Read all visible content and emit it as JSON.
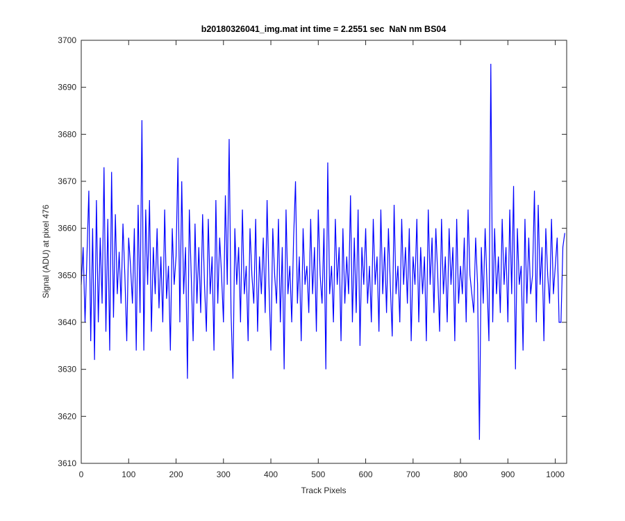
{
  "chart_data": {
    "type": "line",
    "title": "b20180326041_img.mat int time = 2.2551 sec  NaN nm BS04",
    "x_label": "Track Pixels",
    "y_label": "Signal (ADU) at pixel 476",
    "xlim": [
      0,
      1024
    ],
    "ylim": [
      3610,
      3700
    ],
    "xticks": [
      0,
      100,
      200,
      300,
      400,
      500,
      600,
      700,
      800,
      900,
      1000
    ],
    "yticks": [
      3610,
      3620,
      3630,
      3640,
      3650,
      3660,
      3670,
      3680,
      3690,
      3700
    ],
    "grid": false,
    "x": [
      0,
      4,
      8,
      12,
      16,
      20,
      24,
      28,
      32,
      36,
      40,
      44,
      48,
      52,
      56,
      60,
      64,
      68,
      72,
      76,
      80,
      84,
      88,
      92,
      96,
      100,
      104,
      108,
      112,
      116,
      120,
      124,
      128,
      132,
      136,
      140,
      144,
      148,
      152,
      156,
      160,
      164,
      168,
      172,
      176,
      180,
      184,
      188,
      192,
      196,
      200,
      204,
      208,
      212,
      216,
      220,
      224,
      228,
      232,
      236,
      240,
      244,
      248,
      252,
      256,
      260,
      264,
      268,
      272,
      276,
      280,
      284,
      288,
      292,
      296,
      300,
      304,
      308,
      312,
      316,
      320,
      324,
      328,
      332,
      336,
      340,
      344,
      348,
      352,
      356,
      360,
      364,
      368,
      372,
      376,
      380,
      384,
      388,
      392,
      396,
      400,
      404,
      408,
      412,
      416,
      420,
      424,
      428,
      432,
      436,
      440,
      444,
      448,
      452,
      456,
      460,
      464,
      468,
      472,
      476,
      480,
      484,
      488,
      492,
      496,
      500,
      504,
      508,
      512,
      516,
      520,
      524,
      528,
      532,
      536,
      540,
      544,
      548,
      552,
      556,
      560,
      564,
      568,
      572,
      576,
      580,
      584,
      588,
      592,
      596,
      600,
      604,
      608,
      612,
      616,
      620,
      624,
      628,
      632,
      636,
      640,
      644,
      648,
      652,
      656,
      660,
      664,
      668,
      672,
      676,
      680,
      684,
      688,
      692,
      696,
      700,
      704,
      708,
      712,
      716,
      720,
      724,
      728,
      732,
      736,
      740,
      744,
      748,
      752,
      756,
      760,
      764,
      768,
      772,
      776,
      780,
      784,
      788,
      792,
      796,
      800,
      804,
      808,
      812,
      816,
      820,
      824,
      828,
      832,
      836,
      840,
      844,
      848,
      852,
      856,
      860,
      864,
      868,
      872,
      876,
      880,
      884,
      888,
      892,
      896,
      900,
      904,
      908,
      912,
      916,
      920,
      924,
      928,
      932,
      936,
      940,
      944,
      948,
      952,
      956,
      960,
      964,
      968,
      972,
      976,
      980,
      984,
      988,
      992,
      996,
      1000,
      1004,
      1008,
      1012,
      1016,
      1020
    ],
    "series": [
      {
        "name": "signal",
        "color": "#0000ff",
        "values": [
          3648,
          3656,
          3640,
          3654,
          3668,
          3636,
          3660,
          3632,
          3666,
          3640,
          3658,
          3644,
          3673,
          3638,
          3662,
          3634,
          3672,
          3641,
          3663,
          3646,
          3655,
          3644,
          3661,
          3650,
          3636,
          3658,
          3652,
          3644,
          3660,
          3634,
          3665,
          3642,
          3683,
          3634,
          3664,
          3648,
          3666,
          3638,
          3656,
          3646,
          3660,
          3643,
          3654,
          3640,
          3664,
          3645,
          3652,
          3634,
          3660,
          3648,
          3654,
          3675,
          3640,
          3670,
          3646,
          3656,
          3628,
          3664,
          3650,
          3636,
          3661,
          3644,
          3656,
          3642,
          3663,
          3648,
          3638,
          3662,
          3646,
          3654,
          3634,
          3666,
          3644,
          3658,
          3650,
          3640,
          3667,
          3648,
          3679,
          3642,
          3628,
          3660,
          3648,
          3656,
          3640,
          3664,
          3646,
          3652,
          3636,
          3660,
          3650,
          3644,
          3662,
          3638,
          3654,
          3646,
          3658,
          3642,
          3666,
          3648,
          3634,
          3660,
          3650,
          3644,
          3662,
          3640,
          3656,
          3630,
          3664,
          3646,
          3652,
          3640,
          3658,
          3670,
          3644,
          3654,
          3636,
          3660,
          3648,
          3652,
          3642,
          3662,
          3646,
          3656,
          3638,
          3664,
          3650,
          3644,
          3660,
          3630,
          3674,
          3646,
          3652,
          3640,
          3662,
          3648,
          3656,
          3636,
          3660,
          3644,
          3654,
          3646,
          3667,
          3640,
          3658,
          3642,
          3664,
          3635,
          3656,
          3648,
          3660,
          3644,
          3652,
          3640,
          3662,
          3648,
          3654,
          3638,
          3664,
          3646,
          3656,
          3642,
          3660,
          3648,
          3637,
          3665,
          3646,
          3652,
          3640,
          3662,
          3648,
          3656,
          3644,
          3660,
          3636,
          3654,
          3648,
          3662,
          3640,
          3656,
          3646,
          3654,
          3636,
          3664,
          3648,
          3658,
          3642,
          3660,
          3650,
          3638,
          3662,
          3646,
          3654,
          3640,
          3660,
          3648,
          3656,
          3636,
          3662,
          3644,
          3652,
          3646,
          3658,
          3640,
          3664,
          3650,
          3646,
          3642,
          3658,
          3648,
          3615,
          3656,
          3644,
          3660,
          3648,
          3636,
          3695,
          3640,
          3660,
          3646,
          3654,
          3642,
          3662,
          3648,
          3656,
          3640,
          3664,
          3646,
          3669,
          3630,
          3660,
          3648,
          3652,
          3634,
          3662,
          3644,
          3658,
          3646,
          3650,
          3668,
          3640,
          3665,
          3648,
          3656,
          3636,
          3660,
          3650,
          3644,
          3662,
          3646,
          3652,
          3658,
          3640,
          3640,
          3656,
          3659
        ]
      }
    ]
  }
}
